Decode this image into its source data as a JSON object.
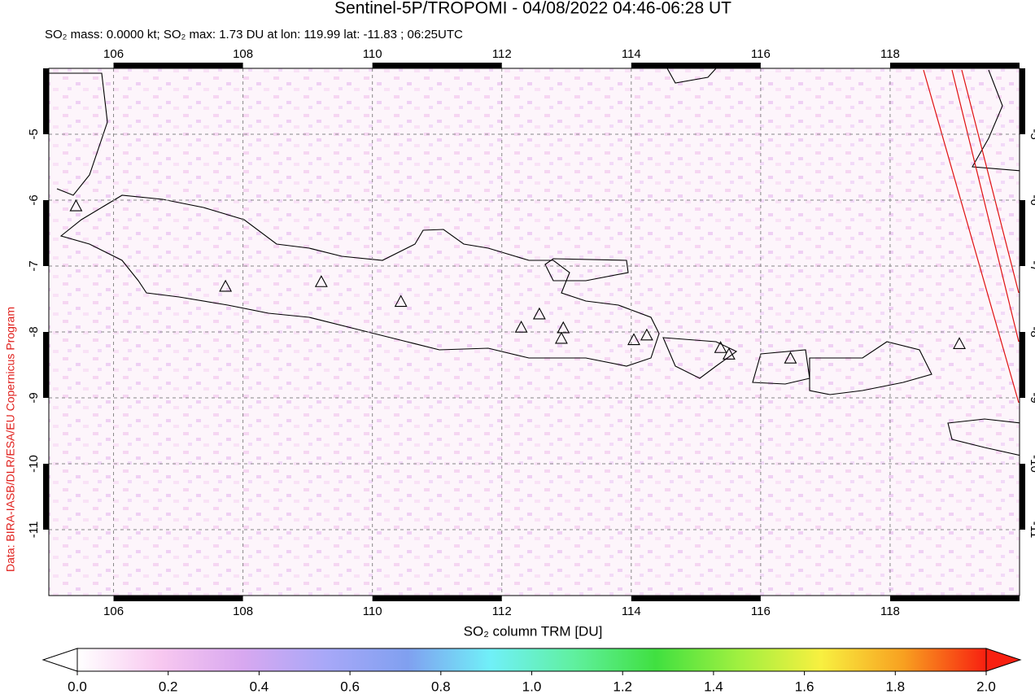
{
  "chart_data": {
    "type": "map",
    "title": "Sentinel-5P/TROPOMI - 04/08/2022 04:46-06:28 UT",
    "subtitle": "SO₂ mass: 0.0000 kt; SO₂ max: 1.73 DU at lon: 119.99 lat: -11.83 ; 06:25UTC",
    "credit": "Data: BIRA-IASB/DLR/ESA/EU Copernicus Program",
    "xlim": [
      105,
      120
    ],
    "ylim": [
      -12,
      -4
    ],
    "xticks": [
      106,
      108,
      110,
      112,
      114,
      116,
      118
    ],
    "yticks": [
      -5,
      -6,
      -7,
      -8,
      -9,
      -10,
      -11
    ],
    "grid": true,
    "volcanoes": {
      "lon": [
        105.42,
        107.73,
        109.21,
        110.44,
        112.3,
        112.58,
        112.95,
        112.92,
        114.04,
        114.24,
        115.38,
        115.51,
        116.46,
        119.07
      ],
      "lat": [
        -6.1,
        -7.32,
        -7.25,
        -7.55,
        -7.94,
        -7.74,
        -7.95,
        -8.11,
        -8.13,
        -8.06,
        -8.25,
        -8.35,
        -8.41,
        -8.19
      ]
    },
    "colorbar": {
      "label": "SO₂ column TRM [DU]",
      "lim": [
        0,
        2
      ],
      "colors": [
        "#ffffff",
        "#f8c8f0",
        "#d8a8f0",
        "#a8a8f8",
        "#80a0f0",
        "#70f0f8",
        "#60f0a0",
        "#40e040",
        "#a0f040",
        "#f8f040",
        "#f8a020",
        "#f82010"
      ],
      "ticks": [
        {
          "value": 0,
          "label": "0.0"
        },
        0.2,
        0.4,
        0.6,
        0.8,
        {
          "value": 1,
          "label": "1.0"
        },
        1.2,
        1.4,
        1.6,
        1.8,
        {
          "value": 2,
          "label": "2.0"
        }
      ]
    }
  }
}
